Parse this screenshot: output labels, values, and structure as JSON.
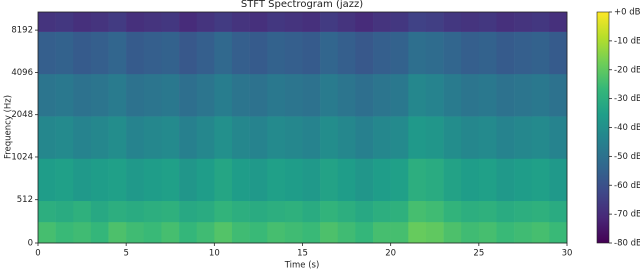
{
  "chart_data": {
    "type": "spectrogram",
    "title": "STFT Spectrogram (jazz)",
    "xlabel": "Time (s)",
    "ylabel": "Frequency (Hz)",
    "xlim": [
      0,
      30
    ],
    "xticks": [
      0,
      5,
      10,
      15,
      20,
      25,
      30
    ],
    "ylim": [
      0,
      11025
    ],
    "yscale": "symlog",
    "ylinthresh": 1000,
    "ylogbase": 2,
    "yticks": [
      0,
      512,
      1024,
      2048,
      4096,
      8192
    ],
    "colormap": "viridis",
    "clim": [
      -80,
      0
    ],
    "cticks": [
      {
        "value": 0,
        "label": "+0 dB"
      },
      {
        "value": -10,
        "label": "-10 dB"
      },
      {
        "value": -20,
        "label": "-20 dB"
      },
      {
        "value": -30,
        "label": "-30 dB"
      },
      {
        "value": -40,
        "label": "-40 dB"
      },
      {
        "value": -50,
        "label": "-50 dB"
      },
      {
        "value": -60,
        "label": "-60 dB"
      },
      {
        "value": -70,
        "label": "-70 dB"
      },
      {
        "value": -80,
        "label": "-80 dB"
      }
    ],
    "time_edges": [
      0,
      1,
      2,
      3,
      4,
      5,
      6,
      7,
      8,
      9,
      10,
      11,
      12,
      13,
      14,
      15,
      16,
      17,
      18,
      19,
      20,
      21,
      22,
      23,
      24,
      25,
      26,
      27,
      28,
      29,
      30
    ],
    "freq_edges": [
      0,
      250,
      500,
      1000,
      2000,
      4000,
      8000,
      11025
    ],
    "z": [
      [
        -24,
        -26,
        -25,
        -27,
        -23,
        -25,
        -26,
        -24,
        -27,
        -25,
        -22,
        -25,
        -26,
        -24,
        -25,
        -26,
        -23,
        -25,
        -27,
        -24,
        -24,
        -19,
        -20,
        -23,
        -25,
        -24,
        -26,
        -25,
        -24,
        -26
      ],
      [
        -30,
        -31,
        -29,
        -32,
        -30,
        -31,
        -30,
        -29,
        -32,
        -31,
        -28,
        -30,
        -31,
        -30,
        -29,
        -31,
        -28,
        -30,
        -32,
        -30,
        -29,
        -24,
        -25,
        -28,
        -30,
        -29,
        -31,
        -30,
        -29,
        -31
      ],
      [
        -36,
        -35,
        -37,
        -36,
        -35,
        -37,
        -36,
        -35,
        -38,
        -36,
        -33,
        -36,
        -37,
        -35,
        -36,
        -37,
        -34,
        -36,
        -38,
        -36,
        -35,
        -30,
        -31,
        -34,
        -36,
        -35,
        -37,
        -36,
        -35,
        -37
      ],
      [
        -43,
        -42,
        -44,
        -43,
        -41,
        -44,
        -43,
        -42,
        -45,
        -43,
        -40,
        -43,
        -44,
        -42,
        -43,
        -44,
        -41,
        -43,
        -45,
        -43,
        -42,
        -37,
        -38,
        -41,
        -43,
        -42,
        -44,
        -43,
        -42,
        -44
      ],
      [
        -49,
        -48,
        -50,
        -49,
        -47,
        -50,
        -49,
        -48,
        -51,
        -49,
        -46,
        -49,
        -50,
        -48,
        -49,
        -50,
        -47,
        -49,
        -51,
        -49,
        -48,
        -43,
        -44,
        -47,
        -49,
        -48,
        -50,
        -49,
        -48,
        -50
      ],
      [
        -56,
        -55,
        -57,
        -56,
        -54,
        -57,
        -56,
        -55,
        -58,
        -56,
        -53,
        -56,
        -57,
        -55,
        -56,
        -57,
        -54,
        -56,
        -58,
        -56,
        -55,
        -51,
        -52,
        -54,
        -56,
        -55,
        -57,
        -56,
        -55,
        -57
      ],
      [
        -68,
        -67,
        -69,
        -68,
        -66,
        -69,
        -68,
        -67,
        -70,
        -68,
        -66,
        -68,
        -69,
        -67,
        -68,
        -69,
        -66,
        -68,
        -70,
        -68,
        -67,
        -64,
        -65,
        -67,
        -68,
        -67,
        -69,
        -68,
        -67,
        -69
      ]
    ]
  }
}
